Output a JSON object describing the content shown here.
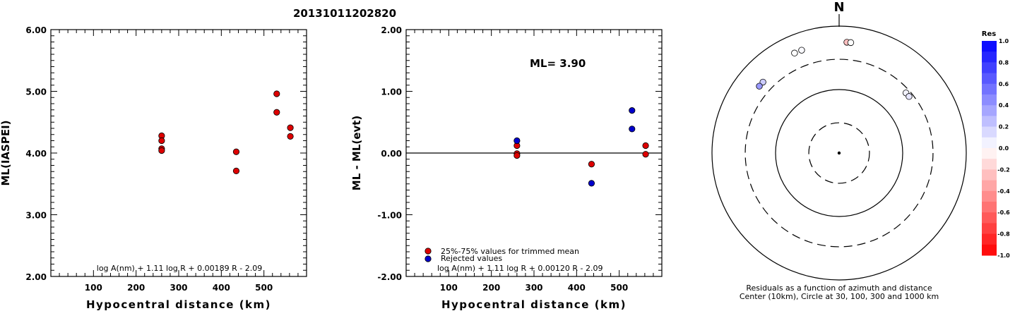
{
  "title": "20131011202820",
  "chart_data": [
    {
      "type": "scatter",
      "panel": "left",
      "xlabel": "Hypocentral distance (km)",
      "ylabel": "ML(IASPEI)",
      "xlim": [
        0,
        600
      ],
      "ylim": [
        2.0,
        6.0
      ],
      "x_ticks": [
        "100",
        "200",
        "300",
        "400",
        "500"
      ],
      "y_ticks": [
        "2.00",
        "3.00",
        "4.00",
        "5.00",
        "6.00"
      ],
      "formula": "log A(nm) + 1.11 log R + 0.00189 R - 2.09",
      "series": [
        {
          "color": "#dd0000",
          "points": [
            {
              "x": 260,
              "y": 4.28
            },
            {
              "x": 260,
              "y": 4.2
            },
            {
              "x": 260,
              "y": 4.07
            },
            {
              "x": 260,
              "y": 4.04
            },
            {
              "x": 435,
              "y": 4.02
            },
            {
              "x": 435,
              "y": 3.71
            },
            {
              "x": 530,
              "y": 4.96
            },
            {
              "x": 530,
              "y": 4.66
            },
            {
              "x": 562,
              "y": 4.41
            },
            {
              "x": 562,
              "y": 4.27
            }
          ]
        }
      ]
    },
    {
      "type": "scatter",
      "panel": "middle",
      "xlabel": "Hypocentral distance (km)",
      "ylabel": "ML - ML(evt)",
      "xlim": [
        0,
        600
      ],
      "ylim": [
        -2.0,
        2.0
      ],
      "x_ticks": [
        "100",
        "200",
        "300",
        "400",
        "500"
      ],
      "y_ticks": [
        "-2.00",
        "-1.00",
        "0.00",
        "1.00",
        "2.00"
      ],
      "annotation": "ML= 3.90",
      "formula": "log A(nm) + 1.11 log R + 0.00120 R - 2.09",
      "reference_line_y": 0,
      "series": [
        {
          "name": "25%-75% values for trimmed mean",
          "color": "#dd0000",
          "points": [
            {
              "x": 260,
              "y": 0.12
            },
            {
              "x": 260,
              "y": -0.01
            },
            {
              "x": 260,
              "y": -0.04
            },
            {
              "x": 435,
              "y": -0.18
            },
            {
              "x": 562,
              "y": 0.12
            },
            {
              "x": 562,
              "y": -0.02
            }
          ]
        },
        {
          "name": "Rejected values",
          "color": "#0000cc",
          "points": [
            {
              "x": 260,
              "y": 0.2
            },
            {
              "x": 435,
              "y": -0.49
            },
            {
              "x": 530,
              "y": 0.69
            },
            {
              "x": 530,
              "y": 0.39
            }
          ]
        }
      ]
    },
    {
      "type": "scatter",
      "panel": "polar",
      "north_label": "N",
      "caption_line1": "Residuals as a function of azimuth and distance",
      "caption_line2": "Center (10km), Circle at 30, 100, 300 and 1000 km",
      "circles_km": [
        30,
        100,
        300,
        1000
      ],
      "stations": [
        {
          "azimuth_deg": -47,
          "distance_km": 435,
          "res": 0.2
        },
        {
          "azimuth_deg": -50,
          "distance_km": 435,
          "res": 0.4
        },
        {
          "azimuth_deg": -24,
          "distance_km": 530,
          "res": 0.0
        },
        {
          "azimuth_deg": -20,
          "distance_km": 530,
          "res": 0.02
        },
        {
          "azimuth_deg": 4,
          "distance_km": 562,
          "res": -0.25
        },
        {
          "azimuth_deg": 6,
          "distance_km": 562,
          "res": 0.0
        },
        {
          "azimuth_deg": 48,
          "distance_km": 260,
          "res": 0.05
        },
        {
          "azimuth_deg": 51,
          "distance_km": 260,
          "res": 0.1
        }
      ],
      "colorbar": {
        "title": "Res",
        "ticks": [
          "1.0",
          "0.8",
          "0.6",
          "0.4",
          "0.2",
          "0.0",
          "-0.2",
          "-0.4",
          "-0.6",
          "-0.8",
          "-1.0"
        ],
        "positive_color": "#0000ff",
        "negative_color": "#ff0000"
      }
    }
  ]
}
